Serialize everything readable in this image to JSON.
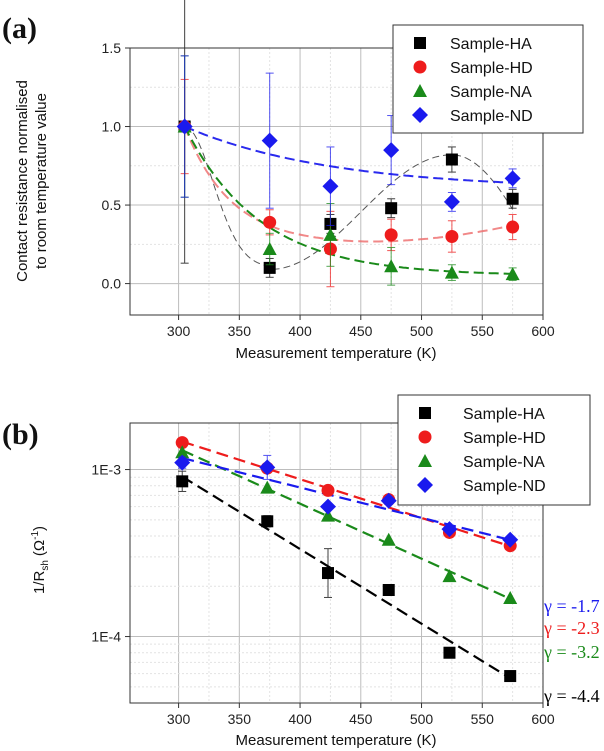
{
  "chart_data": [
    {
      "panel": "(a)",
      "type": "scatter",
      "xlabel": "Measurement temperature (K)",
      "ylabel_lines": [
        "Contact resistance normalised",
        "to room temperature value"
      ],
      "xlim": [
        260,
        600
      ],
      "ylim": [
        -0.2,
        1.5
      ],
      "xticks": [
        "300",
        "350",
        "400",
        "450",
        "500",
        "550",
        "600"
      ],
      "yticks": [
        "0.0",
        "0.5",
        "1.0",
        "1.5"
      ],
      "legend_position": "top-right",
      "series": [
        {
          "name": "Sample-HA",
          "marker": "square",
          "color": "#000000",
          "fit_color": "#555555",
          "x": [
            305,
            375,
            425,
            475,
            525,
            575
          ],
          "y": [
            1.0,
            0.1,
            0.38,
            0.48,
            0.79,
            0.54
          ],
          "err": [
            0.87,
            0.06,
            0.06,
            0.06,
            0.08,
            0.06
          ]
        },
        {
          "name": "Sample-HD",
          "marker": "circle",
          "color": "#ee1c1c",
          "fit_color": "#ee6a6a",
          "x": [
            305,
            375,
            425,
            475,
            525,
            575
          ],
          "y": [
            1.0,
            0.39,
            0.22,
            0.31,
            0.3,
            0.36
          ],
          "err": [
            0.3,
            0.08,
            0.24,
            0.1,
            0.1,
            0.08
          ]
        },
        {
          "name": "Sample-NA",
          "marker": "triangle",
          "color": "#1a8a1a",
          "fit_color": "#1a8a1a",
          "x": [
            305,
            375,
            425,
            475,
            525,
            575
          ],
          "y": [
            1.0,
            0.22,
            0.31,
            0.11,
            0.07,
            0.06
          ],
          "err": [
            0.45,
            0.1,
            0.2,
            0.12,
            0.05,
            0.04
          ]
        },
        {
          "name": "Sample-ND",
          "marker": "diamond",
          "color": "#1a1aee",
          "fit_color": "#2a2aee",
          "x": [
            305,
            375,
            425,
            475,
            525,
            575
          ],
          "y": [
            1.0,
            0.91,
            0.62,
            0.85,
            0.52,
            0.67
          ],
          "err": [
            0.45,
            0.43,
            0.25,
            0.22,
            0.06,
            0.06
          ]
        }
      ]
    },
    {
      "panel": "(b)",
      "type": "scatter",
      "xlabel": "Measurement temperature (K)",
      "ylabel": "1/R",
      "ylabel_sub": "sh",
      "ylabel_unit": "(Ω",
      "ylabel_sup": "-1",
      "ylabel_close": ")",
      "xlim": [
        260,
        600
      ],
      "ylim": [
        4e-05,
        0.0019
      ],
      "y_scale": "log",
      "xticks": [
        "300",
        "350",
        "400",
        "450",
        "500",
        "550",
        "600"
      ],
      "yticks": [
        {
          "label": "1E-4",
          "value": 0.0001
        },
        {
          "label": "1E-3",
          "value": 0.001
        }
      ],
      "legend_position": "top-right",
      "series": [
        {
          "name": "Sample-HA",
          "marker": "square",
          "color": "#000000",
          "gamma_label": "γ = -4.4",
          "x": [
            303,
            373,
            423,
            473,
            523,
            573
          ],
          "y": [
            0.00085,
            0.00049,
            0.00024,
            0.00019,
            8e-05,
            5.8e-05
          ],
          "err_factor": [
            1.15,
            1.08,
            1.4,
            1.05,
            1.05,
            1.05
          ]
        },
        {
          "name": "Sample-HD",
          "marker": "circle",
          "color": "#ee1c1c",
          "gamma_label": "γ = -2.3",
          "x": [
            303,
            373,
            423,
            473,
            523,
            573
          ],
          "y": [
            0.00145,
            0.00102,
            0.00075,
            0.00066,
            0.00042,
            0.00035
          ],
          "err_factor": [
            1.05,
            1.05,
            1.05,
            1.05,
            1.05,
            1.05
          ]
        },
        {
          "name": "Sample-NA",
          "marker": "triangle",
          "color": "#1a8a1a",
          "gamma_label": "γ = -3.2",
          "x": [
            303,
            373,
            423,
            473,
            523,
            573
          ],
          "y": [
            0.00127,
            0.00078,
            0.00053,
            0.00038,
            0.00023,
            0.00017
          ],
          "err_factor": [
            1.05,
            1.05,
            1.05,
            1.05,
            1.05,
            1.05
          ]
        },
        {
          "name": "Sample-ND",
          "marker": "diamond",
          "color": "#1a1aee",
          "gamma_label": "γ = -1.7",
          "x": [
            303,
            373,
            423,
            473,
            523,
            573
          ],
          "y": [
            0.0011,
            0.00103,
            0.0006,
            0.00065,
            0.00044,
            0.00038
          ],
          "err_factor": [
            1.08,
            1.18,
            1.06,
            1.05,
            1.05,
            1.05
          ]
        }
      ]
    }
  ]
}
